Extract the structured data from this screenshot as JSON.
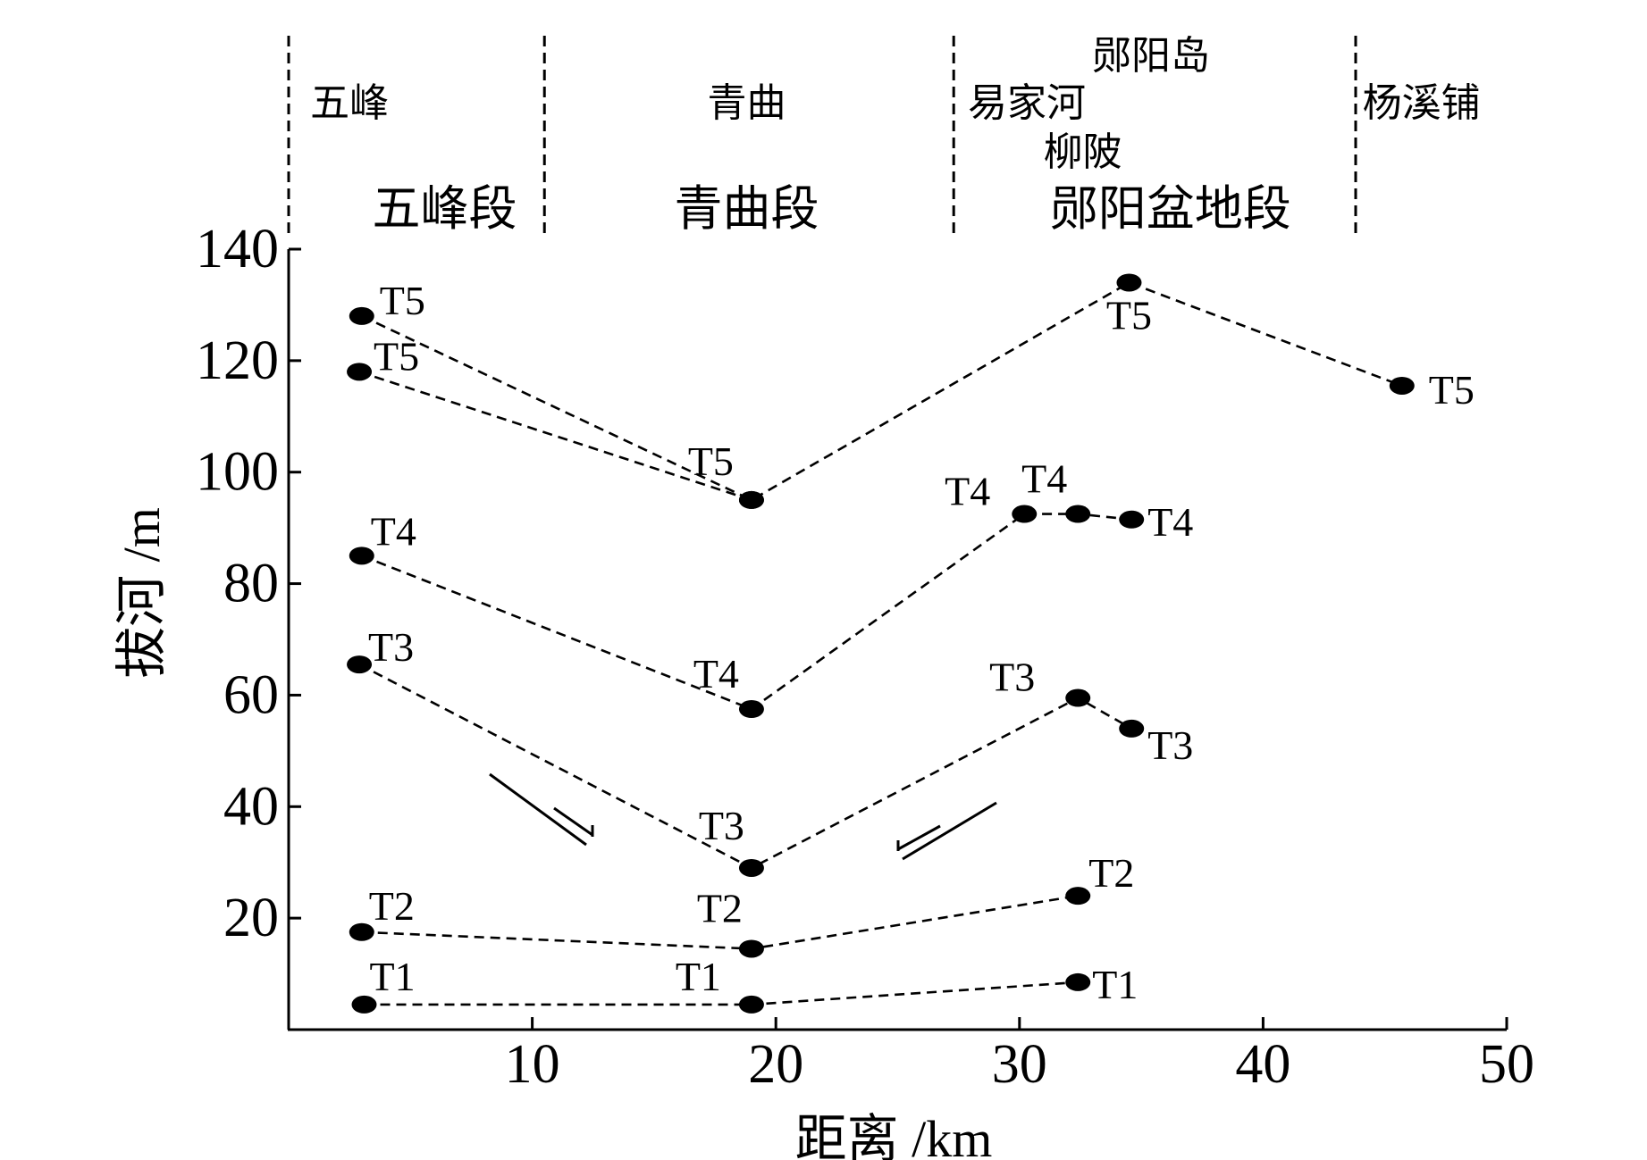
{
  "chart_data": {
    "type": "line",
    "xlabel": "距离 /km",
    "ylabel": "拔河 /m",
    "xlim": [
      0,
      50
    ],
    "ylim": [
      0,
      140
    ],
    "xticks": [
      10,
      20,
      30,
      40,
      50
    ],
    "yticks": [
      20,
      40,
      60,
      80,
      100,
      120,
      140
    ],
    "grid": false,
    "dividers_x": [
      0,
      10.5,
      27.3,
      43.8
    ],
    "locations": [
      {
        "text": "五峰",
        "x": 2.5,
        "level": 2
      },
      {
        "text": "青曲",
        "x": 18.8,
        "level": 2
      },
      {
        "text": "郧阳岛",
        "x": 35.4,
        "level": 1
      },
      {
        "text": "易家河",
        "x": 30.3,
        "level": 2
      },
      {
        "text": "柳陂",
        "x": 32.6,
        "level": 3
      },
      {
        "text": "杨溪铺",
        "x": 46.5,
        "level": 2
      }
    ],
    "segments": [
      {
        "text": "五峰段",
        "x": 6.4
      },
      {
        "text": "青曲段",
        "x": 18.8
      },
      {
        "text": "郧阳盆地段",
        "x": 36.2
      }
    ],
    "series": [
      {
        "points": [
          [
            3.0,
            128
          ],
          [
            19.0,
            95
          ],
          [
            34.5,
            134
          ],
          [
            45.7,
            115.5
          ]
        ],
        "labels": [
          "T5",
          "T5",
          "T5",
          "T5"
        ]
      },
      {
        "points": [
          [
            2.9,
            118
          ],
          [
            19.0,
            95
          ]
        ],
        "labels": [
          "T5",
          ""
        ]
      },
      {
        "points": [
          [
            3.0,
            85
          ],
          [
            19.0,
            57.5
          ],
          [
            30.2,
            92.5
          ],
          [
            32.4,
            92.5
          ],
          [
            34.6,
            91.5
          ]
        ],
        "labels": [
          "T4",
          "T4",
          "T4",
          "T4",
          "T4"
        ]
      },
      {
        "points": [
          [
            2.9,
            65.5
          ],
          [
            19.0,
            29
          ],
          [
            32.4,
            59.5
          ],
          [
            34.6,
            54
          ]
        ],
        "labels": [
          "T3",
          "T3",
          "T3",
          "T3"
        ]
      },
      {
        "points": [
          [
            3.0,
            17.5
          ],
          [
            19.0,
            14.5
          ],
          [
            32.4,
            24
          ]
        ],
        "labels": [
          "T2",
          "T2",
          "T2"
        ]
      },
      {
        "points": [
          [
            3.1,
            4.5
          ],
          [
            19.0,
            4.5
          ],
          [
            32.4,
            8.5
          ]
        ],
        "labels": [
          "T1",
          "T1",
          "T1"
        ]
      }
    ]
  }
}
